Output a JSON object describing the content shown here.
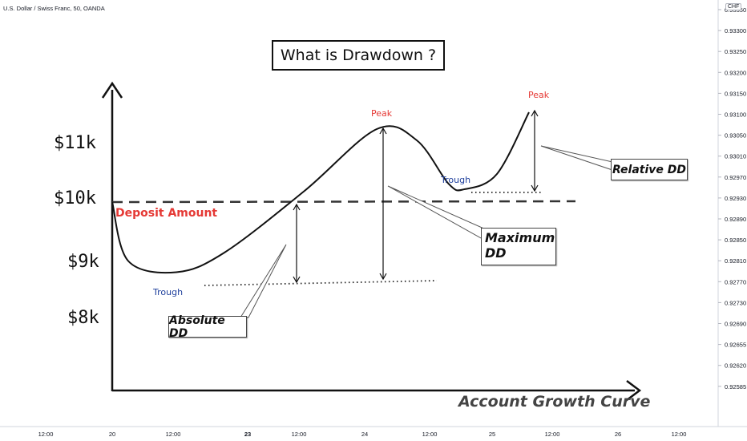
{
  "header": {
    "symbol": "U.S. Dollar / Swiss Franc, 50, OANDA",
    "currency": "CHF"
  },
  "chart_data": {
    "type": "line",
    "title": "What is Drawdown ?",
    "xlabel": "Account Growth Curve",
    "y_value_labels": [
      "$11k",
      "$10k",
      "$9k",
      "$8k"
    ],
    "deposit_label": "Deposit Amount",
    "curve_points": [
      {
        "x": 0,
        "y": 10.0
      },
      {
        "x": 20,
        "y": 8.95
      },
      {
        "x": 80,
        "y": 8.75
      },
      {
        "x": 140,
        "y": 9.1
      },
      {
        "x": 240,
        "y": 10.2
      },
      {
        "x": 330,
        "y": 11.3
      },
      {
        "x": 380,
        "y": 11.1
      },
      {
        "x": 420,
        "y": 10.32
      },
      {
        "x": 440,
        "y": 10.23
      },
      {
        "x": 480,
        "y": 10.5
      },
      {
        "x": 520,
        "y": 11.6
      }
    ],
    "point_labels": [
      {
        "text": "Trough",
        "kind": "trough"
      },
      {
        "text": "Peak",
        "kind": "peak"
      },
      {
        "text": "Trough",
        "kind": "trough"
      },
      {
        "text": "Peak",
        "kind": "peak"
      }
    ],
    "callouts": [
      {
        "text": "Absolute DD"
      },
      {
        "text": "Maximum DD"
      },
      {
        "text": "Relative DD"
      }
    ],
    "right_axis_ticks": [
      "0.93350",
      "0.93300",
      "0.93250",
      "0.93200",
      "0.93150",
      "0.93100",
      "0.93050",
      "0.93010",
      "0.92970",
      "0.92930",
      "0.92890",
      "0.92850",
      "0.92810",
      "0.92770",
      "0.92730",
      "0.92690",
      "0.92655",
      "0.92620",
      "0.92585"
    ],
    "bottom_axis_ticks": [
      "12:00",
      "20",
      "12:00",
      "23",
      "12:00",
      "24",
      "12:00",
      "25",
      "12:00",
      "26",
      "12:00"
    ],
    "colors": {
      "peak": "#e53935",
      "trough": "#1e3f9c",
      "deposit": "#e53935",
      "curve": "#111111"
    }
  }
}
